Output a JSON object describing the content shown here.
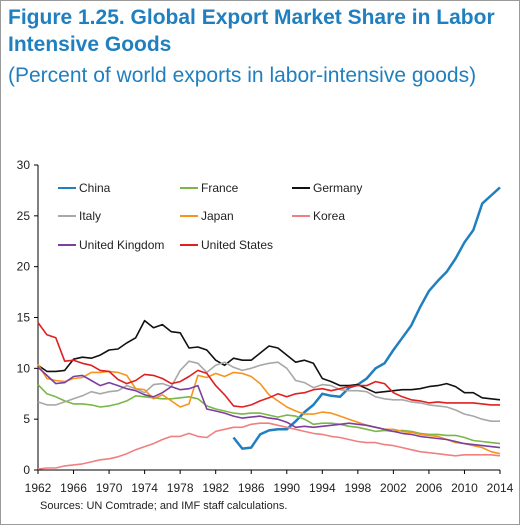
{
  "title": "Figure 1.25. Global Export Market Share in Labor Intensive Goods",
  "subtitle": "(Percent of world exports in labor-intensive goods)",
  "source": "Sources: UN Comtrade; and IMF staff calculations.",
  "chart_data": {
    "type": "line",
    "title": "Figure 1.25. Global Export Market Share in Labor Intensive Goods",
    "subtitle": "(Percent of world exports in labor-intensive goods)",
    "xlabel": "",
    "ylabel": "",
    "xlim": [
      1962,
      2014
    ],
    "ylim": [
      0,
      30
    ],
    "yticks": [
      0,
      5,
      10,
      15,
      20,
      25,
      30
    ],
    "xticks": [
      1962,
      1966,
      1970,
      1974,
      1978,
      1982,
      1986,
      1990,
      1994,
      1998,
      2002,
      2006,
      2010,
      2014
    ],
    "grid": false,
    "legend_position": "top-left, three columns",
    "x": [
      1962,
      1963,
      1964,
      1965,
      1966,
      1967,
      1968,
      1969,
      1970,
      1971,
      1972,
      1973,
      1974,
      1975,
      1976,
      1977,
      1978,
      1979,
      1980,
      1981,
      1982,
      1983,
      1984,
      1985,
      1986,
      1987,
      1988,
      1989,
      1990,
      1991,
      1992,
      1993,
      1994,
      1995,
      1996,
      1997,
      1998,
      1999,
      2000,
      2001,
      2002,
      2003,
      2004,
      2005,
      2006,
      2007,
      2008,
      2009,
      2010,
      2011,
      2012,
      2013,
      2014
    ],
    "series": [
      {
        "name": "China",
        "color": "#1f7fbf",
        "values": [
          null,
          null,
          null,
          null,
          null,
          null,
          null,
          null,
          null,
          null,
          null,
          null,
          null,
          null,
          null,
          null,
          null,
          null,
          null,
          null,
          null,
          null,
          3.2,
          2.1,
          2.2,
          3.5,
          3.9,
          4.0,
          4.0,
          4.8,
          5.7,
          6.4,
          7.5,
          7.3,
          7.2,
          8.1,
          8.4,
          9.0,
          10.0,
          10.5,
          11.8,
          13.0,
          14.2,
          16.0,
          17.6,
          18.6,
          19.5,
          20.8,
          22.4,
          23.6,
          26.2,
          27.0,
          27.8
        ]
      },
      {
        "name": "France",
        "color": "#7ab648",
        "values": [
          8.4,
          7.5,
          7.2,
          6.8,
          6.5,
          6.5,
          6.4,
          6.2,
          6.3,
          6.5,
          6.8,
          7.3,
          7.2,
          7.1,
          7.0,
          7.0,
          7.1,
          7.2,
          7.0,
          6.3,
          6.0,
          5.8,
          5.6,
          5.5,
          5.6,
          5.6,
          5.4,
          5.2,
          5.4,
          5.3,
          5.0,
          4.5,
          4.6,
          4.6,
          4.5,
          4.3,
          4.2,
          4.0,
          3.8,
          3.9,
          3.8,
          3.9,
          3.8,
          3.6,
          3.5,
          3.5,
          3.4,
          3.4,
          3.2,
          2.9,
          2.8,
          2.7,
          2.6
        ]
      },
      {
        "name": "Germany",
        "color": "#111111",
        "values": [
          10.3,
          9.7,
          9.7,
          9.8,
          10.9,
          11.1,
          11.0,
          11.3,
          11.8,
          11.9,
          12.5,
          13.0,
          14.7,
          14.0,
          14.3,
          13.6,
          13.5,
          12.0,
          12.1,
          11.8,
          10.8,
          10.3,
          11.0,
          10.8,
          10.8,
          11.5,
          12.2,
          12.0,
          11.3,
          10.6,
          10.8,
          10.5,
          9.0,
          8.7,
          8.3,
          8.3,
          8.4,
          8.0,
          7.6,
          7.7,
          7.8,
          7.9,
          7.9,
          8.0,
          8.2,
          8.3,
          8.5,
          8.2,
          7.6,
          7.6,
          7.1,
          7.0,
          6.9
        ]
      },
      {
        "name": "Italy",
        "color": "#a8a8a8",
        "values": [
          6.7,
          6.4,
          6.4,
          6.7,
          7.0,
          7.3,
          7.7,
          7.5,
          7.7,
          7.8,
          8.3,
          8.0,
          7.6,
          8.4,
          8.5,
          8.2,
          9.8,
          10.7,
          10.5,
          9.6,
          10.3,
          10.6,
          10.1,
          9.8,
          10.0,
          10.3,
          10.5,
          10.6,
          10.0,
          8.8,
          8.6,
          8.1,
          8.4,
          8.3,
          7.9,
          7.8,
          7.8,
          7.7,
          7.2,
          7.0,
          6.9,
          6.9,
          6.7,
          6.6,
          6.4,
          6.3,
          6.2,
          5.9,
          5.5,
          5.3,
          5.0,
          4.8,
          4.8
        ]
      },
      {
        "name": "Japan",
        "color": "#f7941d",
        "values": [
          10.4,
          9.0,
          8.8,
          8.7,
          9.0,
          9.1,
          9.6,
          9.6,
          9.7,
          9.6,
          9.3,
          8.0,
          7.9,
          7.0,
          7.4,
          6.8,
          6.2,
          6.5,
          9.3,
          9.1,
          9.5,
          9.2,
          9.6,
          9.5,
          9.2,
          8.5,
          7.4,
          6.8,
          6.2,
          5.8,
          5.5,
          5.5,
          5.7,
          5.6,
          5.3,
          5.0,
          4.7,
          4.4,
          4.2,
          4.0,
          4.0,
          3.8,
          3.7,
          3.5,
          3.4,
          3.3,
          3.0,
          2.7,
          2.6,
          2.4,
          2.2,
          1.8,
          1.6
        ]
      },
      {
        "name": "Korea",
        "color": "#f08080",
        "values": [
          0.1,
          0.2,
          0.2,
          0.4,
          0.5,
          0.6,
          0.8,
          1.0,
          1.1,
          1.3,
          1.6,
          2.0,
          2.3,
          2.6,
          3.0,
          3.3,
          3.3,
          3.6,
          3.3,
          3.2,
          3.8,
          4.0,
          4.2,
          4.2,
          4.5,
          4.6,
          4.6,
          4.4,
          4.2,
          4.0,
          3.8,
          3.6,
          3.5,
          3.3,
          3.2,
          3.0,
          2.8,
          2.7,
          2.7,
          2.5,
          2.4,
          2.2,
          2.0,
          1.8,
          1.7,
          1.6,
          1.5,
          1.4,
          1.5,
          1.5,
          1.5,
          1.5,
          1.4
        ]
      },
      {
        "name": "United Kingdom",
        "color": "#7b3fa0",
        "values": [
          10.1,
          9.3,
          8.5,
          8.6,
          9.2,
          9.3,
          8.8,
          8.3,
          8.6,
          8.3,
          8.0,
          7.8,
          7.4,
          7.2,
          7.6,
          8.2,
          7.9,
          8.0,
          8.3,
          6.0,
          5.8,
          5.6,
          5.3,
          5.1,
          5.2,
          5.3,
          5.1,
          5.0,
          4.7,
          4.2,
          4.3,
          4.2,
          4.3,
          4.4,
          4.5,
          4.6,
          4.5,
          4.4,
          4.2,
          4.0,
          3.8,
          3.6,
          3.5,
          3.3,
          3.2,
          3.1,
          3.0,
          2.8,
          2.6,
          2.5,
          2.4,
          2.3,
          2.2
        ]
      },
      {
        "name": "United States",
        "color": "#e02020",
        "values": [
          14.5,
          13.3,
          13.0,
          10.7,
          10.8,
          10.5,
          10.3,
          9.8,
          9.7,
          8.9,
          8.5,
          8.8,
          9.4,
          9.3,
          9.0,
          8.5,
          8.7,
          9.2,
          9.8,
          9.5,
          8.3,
          7.4,
          6.3,
          6.2,
          6.4,
          6.8,
          7.1,
          7.5,
          7.2,
          7.5,
          7.6,
          7.9,
          8.0,
          7.8,
          8.0,
          8.2,
          8.3,
          8.3,
          8.7,
          8.5,
          7.6,
          7.2,
          6.9,
          6.8,
          6.6,
          6.7,
          6.6,
          6.6,
          6.6,
          6.6,
          6.5,
          6.4,
          6.4
        ]
      }
    ]
  }
}
